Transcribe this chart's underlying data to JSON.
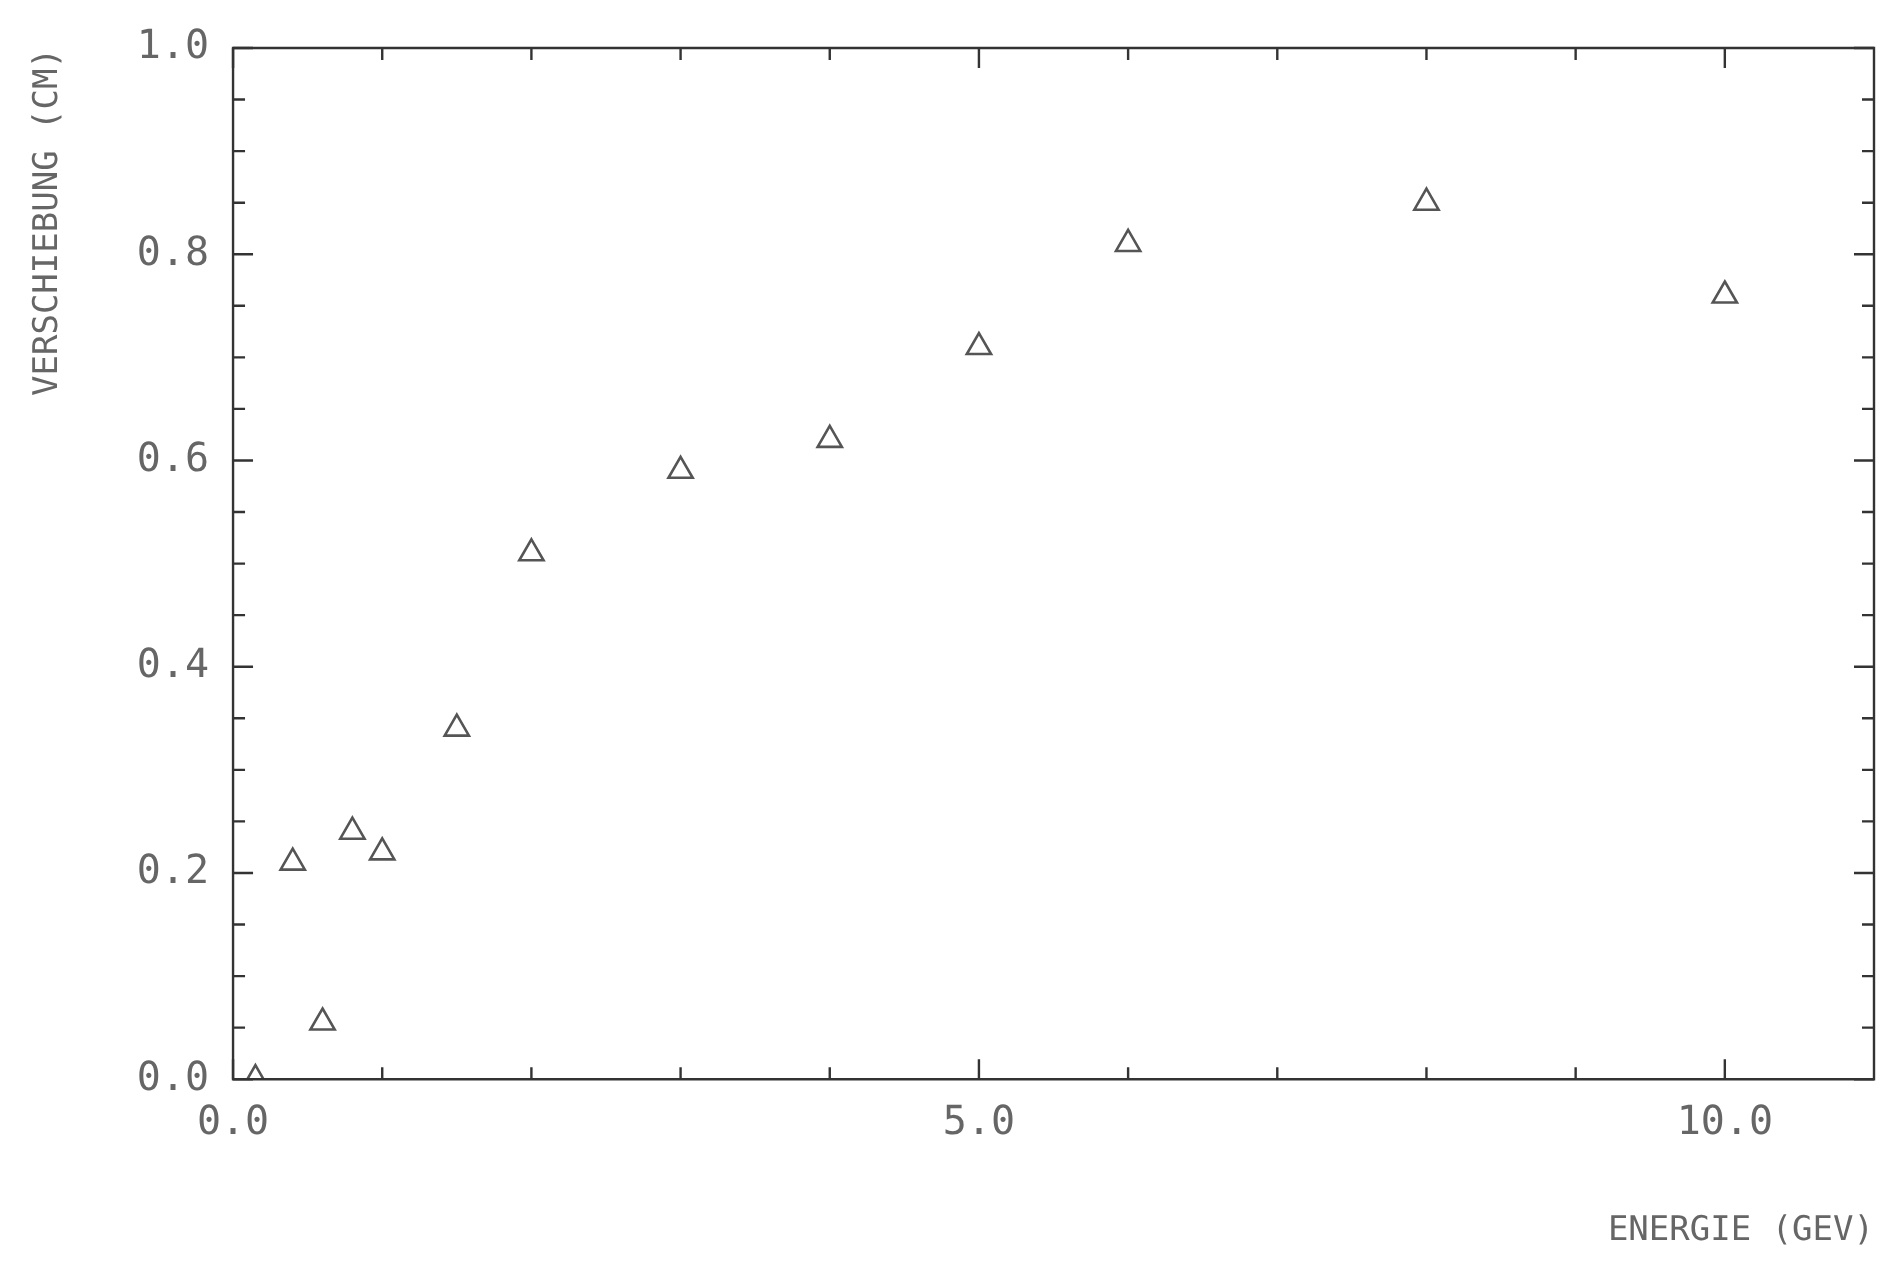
{
  "chart_data": {
    "type": "scatter",
    "xlabel": "ENERGIE (GEV)",
    "ylabel": "VERSCHIEBUNG (CM)",
    "x": [
      0.15,
      0.4,
      0.6,
      0.8,
      1.0,
      1.5,
      2.0,
      3.0,
      4.0,
      5.0,
      6.0,
      8.0,
      10.0
    ],
    "series": [
      {
        "color": "#555555",
        "values": [
          0.0,
          0.21,
          0.055,
          0.24,
          0.22,
          0.34,
          0.51,
          0.59,
          0.62,
          0.71,
          0.81,
          0.85,
          0.76
        ]
      }
    ],
    "xlim": [
      0,
      11
    ],
    "xticks": [
      {
        "value": 0,
        "label": "0.0"
      },
      {
        "value": 1,
        "label": null
      },
      {
        "value": 2,
        "label": null
      },
      {
        "value": 3,
        "label": null
      },
      {
        "value": 4,
        "label": null
      },
      {
        "value": 5,
        "label": "5.0"
      },
      {
        "value": 6,
        "label": null
      },
      {
        "value": 7,
        "label": null
      },
      {
        "value": 8,
        "label": null
      },
      {
        "value": 9,
        "label": null
      },
      {
        "value": 10,
        "label": "10.0"
      }
    ],
    "ylim": [
      0,
      1
    ],
    "yticks": [
      {
        "value": 0,
        "label": "0.0"
      },
      {
        "value": 0.05,
        "label": null
      },
      {
        "value": 0.1,
        "label": null
      },
      {
        "value": 0.15,
        "label": null
      },
      {
        "value": 0.2,
        "label": "0.2"
      },
      {
        "value": 0.25,
        "label": null
      },
      {
        "value": 0.3,
        "label": null
      },
      {
        "value": 0.35,
        "label": null
      },
      {
        "value": 0.4,
        "label": "0.4"
      },
      {
        "value": 0.45,
        "label": null
      },
      {
        "value": 0.5,
        "label": null
      },
      {
        "value": 0.55,
        "label": null
      },
      {
        "value": 0.6,
        "label": "0.6"
      },
      {
        "value": 0.65,
        "label": null
      },
      {
        "value": 0.7,
        "label": null
      },
      {
        "value": 0.75,
        "label": null
      },
      {
        "value": 0.8,
        "label": "0.8"
      },
      {
        "value": 0.85,
        "label": null
      },
      {
        "value": 0.9,
        "label": null
      },
      {
        "value": 0.95,
        "label": null
      },
      {
        "value": 1,
        "label": "1.0"
      }
    ],
    "grid": false,
    "legend": false,
    "marker": "triangle"
  }
}
